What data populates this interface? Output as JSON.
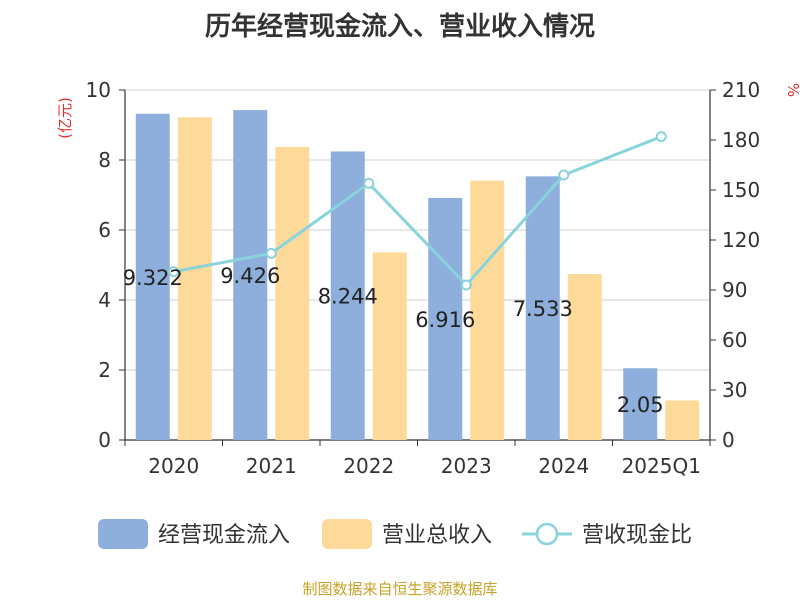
{
  "title": "历年经营现金流入、营业收入情况",
  "source": "制图数据来自恒生聚源数据库",
  "colors": {
    "cash": "#8eaedb",
    "revenue": "#fdd99a",
    "ratio": "#88d3dc"
  },
  "chart_data": {
    "type": "bar",
    "title": "历年经营现金流入、营业收入情况",
    "categories": [
      "2020",
      "2021",
      "2022",
      "2023",
      "2024",
      "2025Q1"
    ],
    "ylabel_left": "(亿元)",
    "ylabel_right": "%",
    "ylim_left": [
      0,
      10
    ],
    "ylim_right": [
      0,
      210
    ],
    "yticks_left": [
      "0",
      "2",
      "4",
      "6",
      "8",
      "10"
    ],
    "yticks_right": [
      "0",
      "30",
      "60",
      "90",
      "120",
      "150",
      "180",
      "210"
    ],
    "grid": true,
    "legend_position": "bottom",
    "series": [
      {
        "name": "经营现金流入",
        "kind": "bar",
        "axis": "left",
        "values": [
          9.322,
          9.426,
          8.244,
          6.916,
          7.533,
          2.05
        ],
        "labels": [
          "9.322",
          "9.426",
          "8.244",
          "6.916",
          "7.533",
          "2.05"
        ]
      },
      {
        "name": "营业总收入",
        "kind": "bar",
        "axis": "left",
        "values": [
          9.22,
          8.37,
          5.36,
          7.41,
          4.74,
          1.13
        ]
      },
      {
        "name": "营收现金比",
        "kind": "line",
        "axis": "right",
        "values": [
          101,
          112,
          154,
          93,
          159,
          182
        ]
      }
    ]
  }
}
